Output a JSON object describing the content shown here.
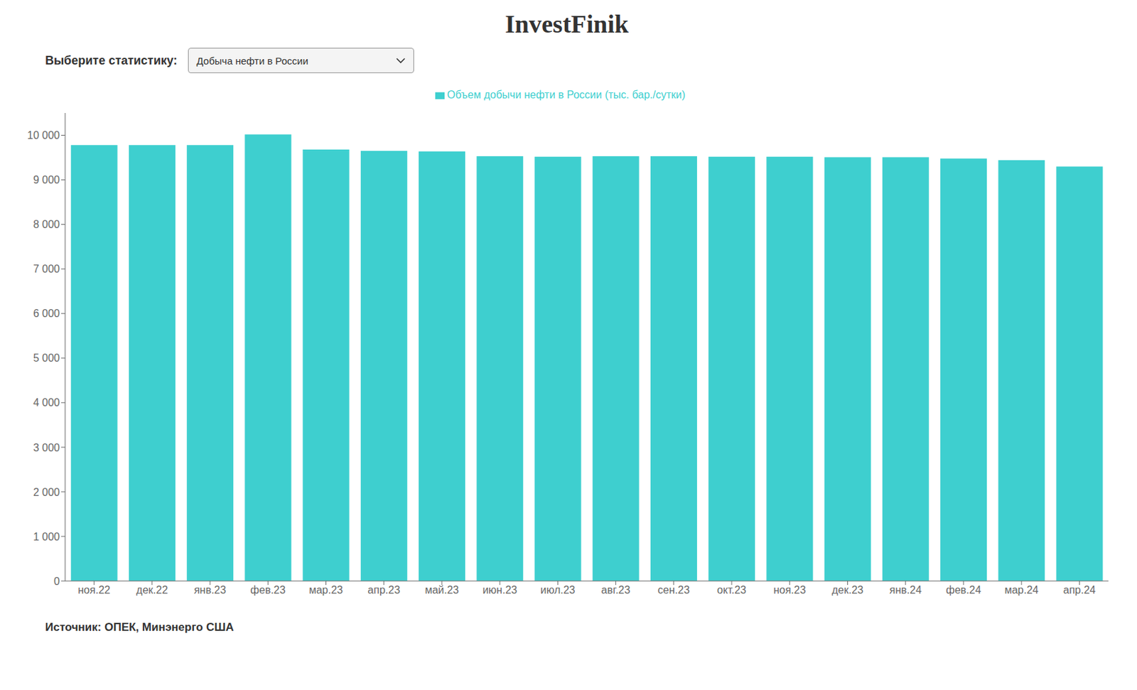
{
  "chart_data": {
    "type": "bar",
    "title": "InvestFinik",
    "annotations": [
      "Выберите статистику:",
      "Добыча нефти в России",
      "Источник: ОПЕК, Минэнерго США"
    ],
    "categories": [
      "ноя.22",
      "дек.22",
      "янв.23",
      "фев.23",
      "мар.23",
      "апр.23",
      "май.23",
      "июн.23",
      "июл.23",
      "авг.23",
      "сен.23",
      "окт.23",
      "ноя.23",
      "дек.23",
      "янв.24",
      "фев.24",
      "мар.24",
      "апр.24"
    ],
    "series": [
      {
        "name": "Объем добычи нефти в России (тыс. бар./сутки)",
        "color": "#3ecfcf",
        "values": [
          9780,
          9780,
          9780,
          10020,
          9680,
          9650,
          9640,
          9530,
          9520,
          9530,
          9530,
          9520,
          9520,
          9510,
          9510,
          9480,
          9440,
          9300
        ]
      }
    ],
    "ylim": [
      0,
      10500
    ],
    "yticks": [
      0,
      {
        "value": 1000,
        "label": "1 000"
      },
      {
        "value": 2000,
        "label": "2 000"
      },
      {
        "value": 3000,
        "label": "3 000"
      },
      {
        "value": 4000,
        "label": "4 000"
      },
      {
        "value": 5000,
        "label": "5 000"
      },
      {
        "value": 6000,
        "label": "6 000"
      },
      {
        "value": 7000,
        "label": "7 000"
      },
      {
        "value": 8000,
        "label": "8 000"
      },
      {
        "value": 9000,
        "label": "9 000"
      },
      {
        "value": 10000,
        "label": "10 000"
      }
    ],
    "grid": false,
    "legend": "top"
  }
}
